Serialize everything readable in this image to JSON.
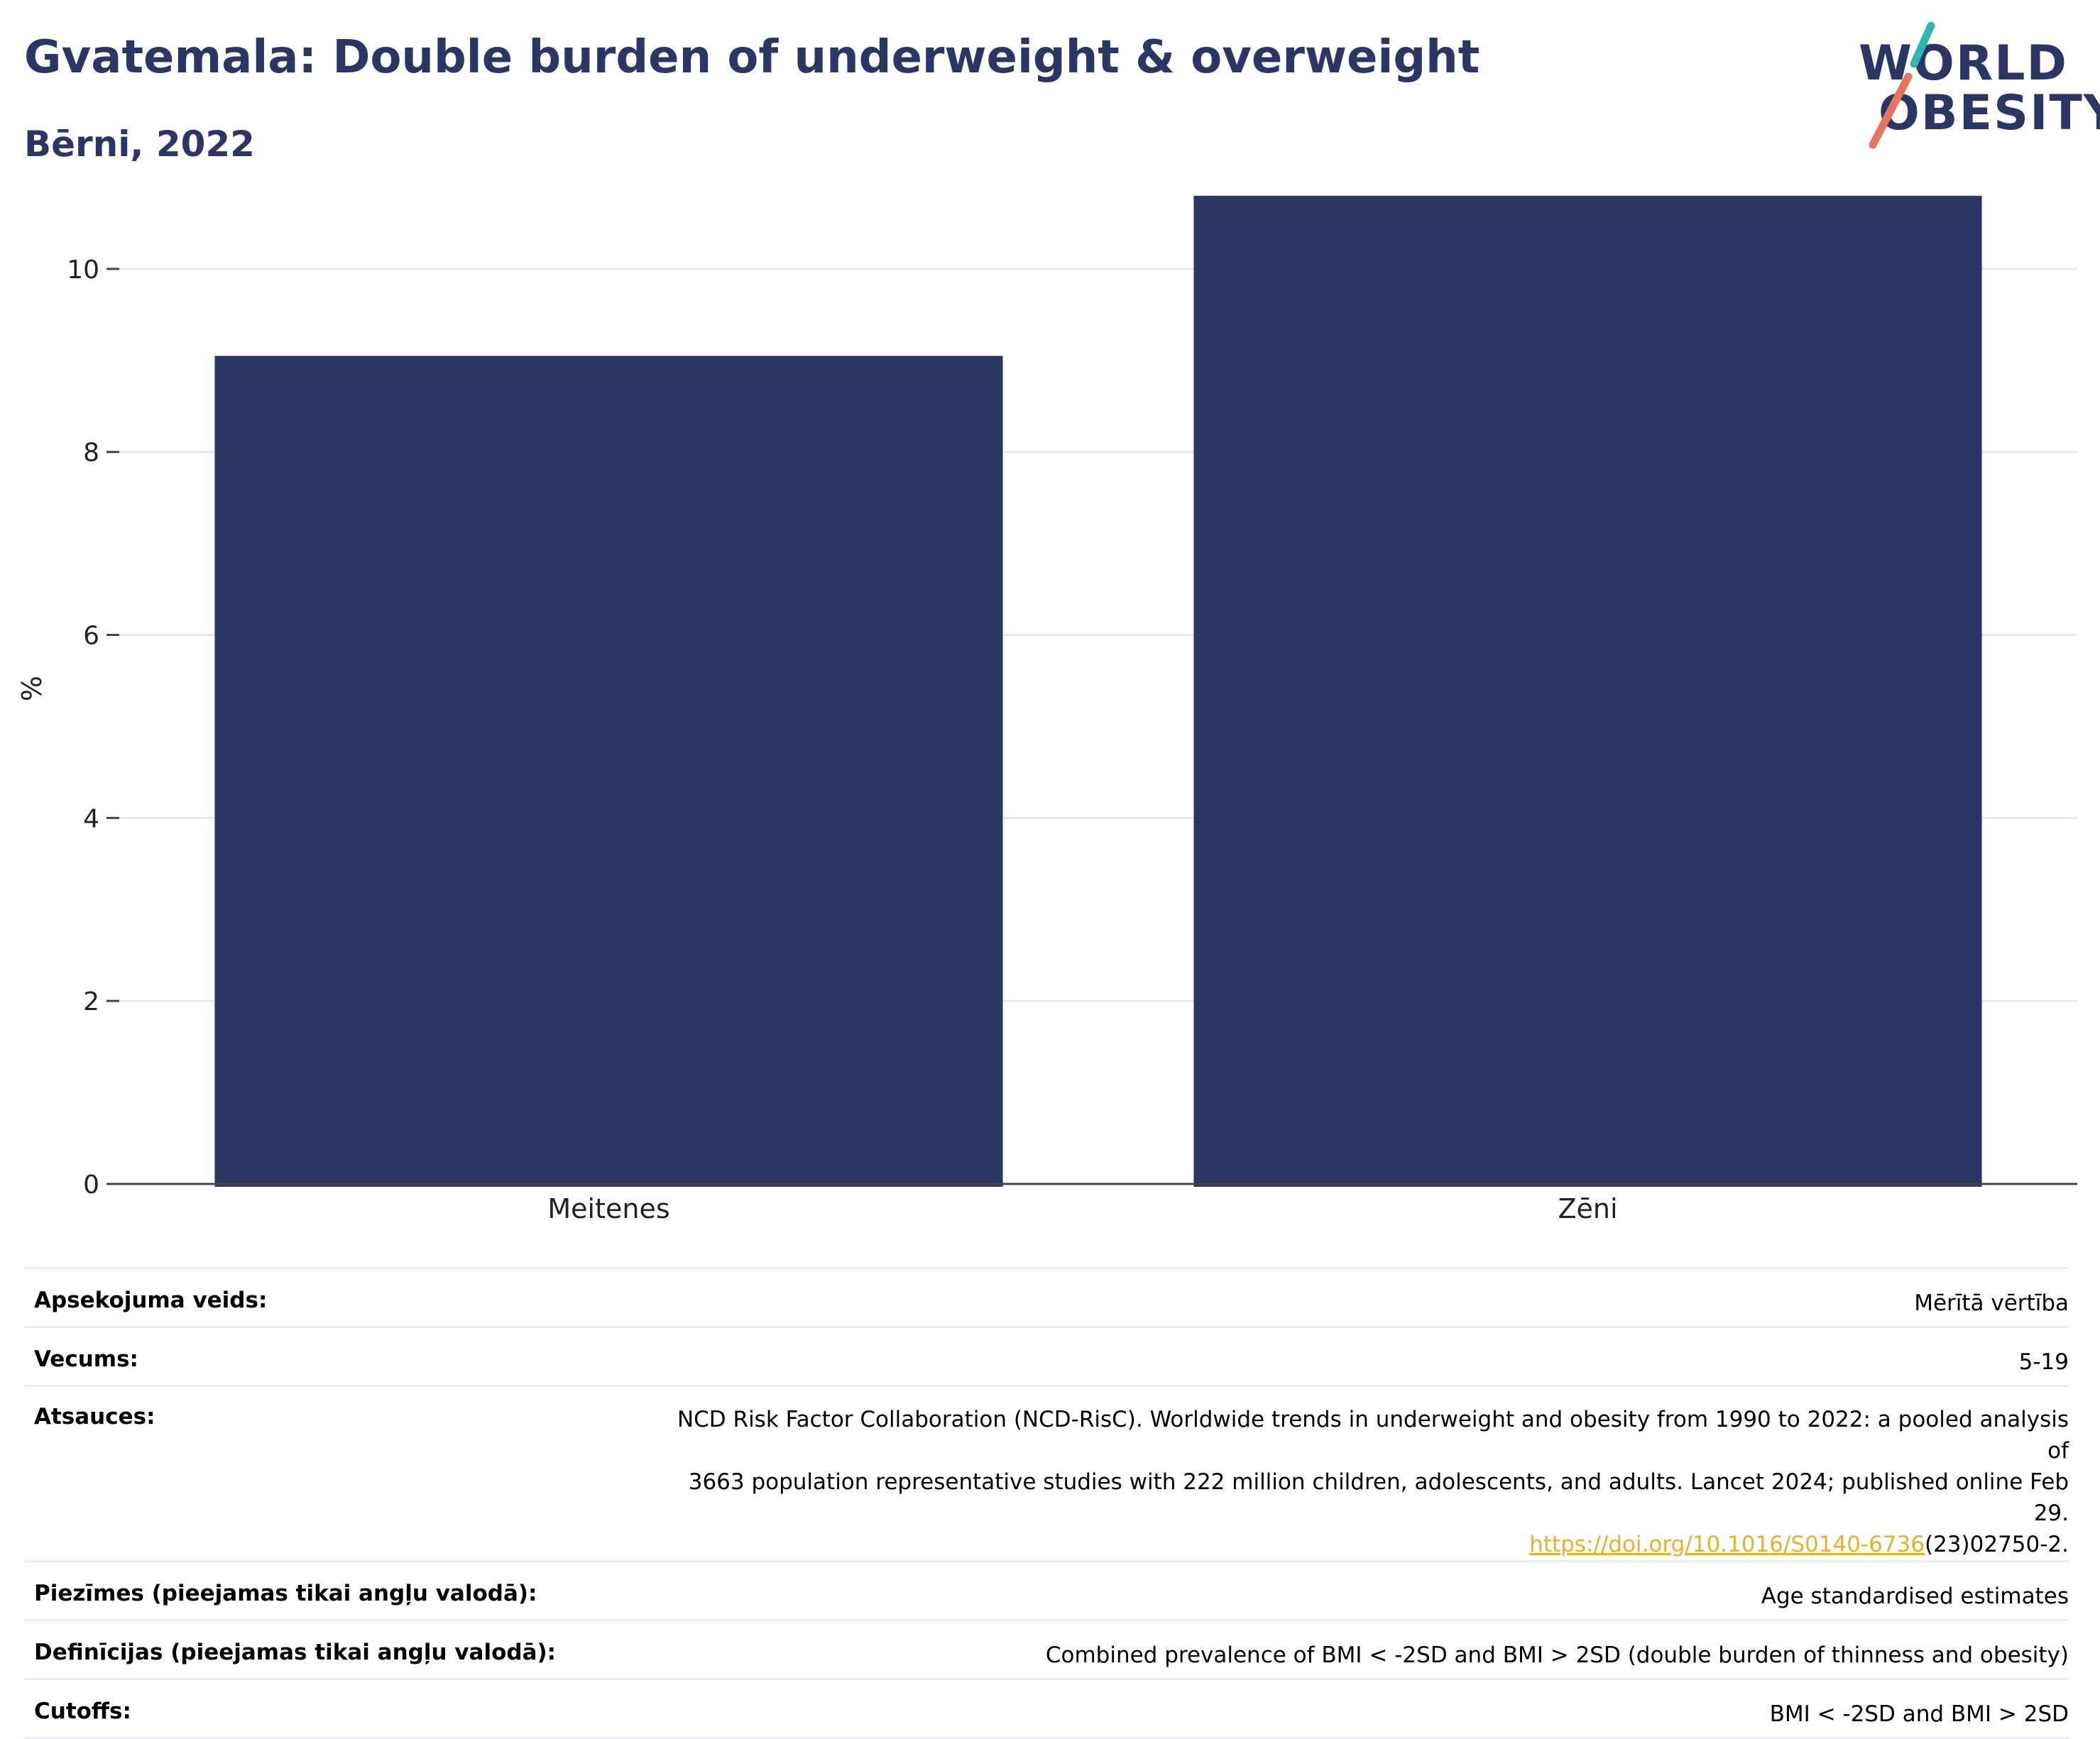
{
  "header": {
    "title": "Gvatemala: Double burden of underweight & overweight",
    "subtitle": "Bērni, 2022"
  },
  "logo": {
    "line1": "WORLD",
    "line2": "OBESITY",
    "accent_teal": "#2fb8b0",
    "accent_coral": "#e8735f"
  },
  "chart_data": {
    "type": "bar",
    "categories": [
      "Meitenes",
      "Zēni"
    ],
    "values": [
      9.05,
      10.8
    ],
    "ylabel": "%",
    "ylim": [
      0,
      11
    ],
    "yticks": [
      0,
      2,
      4,
      6,
      8,
      10
    ],
    "grid": true,
    "bar_color": "#2b3664"
  },
  "meta": {
    "survey_type": {
      "label": "Apsekojuma veids:",
      "value": "Mērītā vērtība"
    },
    "age": {
      "label": "Vecums:",
      "value": "5-19"
    },
    "references": {
      "label": "Atsauces:",
      "line1": "NCD Risk Factor Collaboration (NCD-RisC). Worldwide trends in underweight and obesity from 1990 to 2022: a pooled analysis of",
      "line2": "3663 population representative studies with 222 million children, adolescents, and adults. Lancet 2024; published online Feb 29.",
      "link": "https://doi.org/10.1016/S0140-6736",
      "link_suffix": "(23)02750-2."
    },
    "notes": {
      "label": "Piezīmes (pieejamas tikai angļu valodā):",
      "value": "Age standardised estimates"
    },
    "definitions": {
      "label": "Definīcijas (pieejamas tikai angļu valodā):",
      "value": "Combined prevalence of BMI < -2SD and BMI > 2SD (double burden of thinness and obesity)"
    },
    "cutoffs": {
      "label": "Cutoffs:",
      "value": "BMI < -2SD and BMI > 2SD"
    }
  }
}
